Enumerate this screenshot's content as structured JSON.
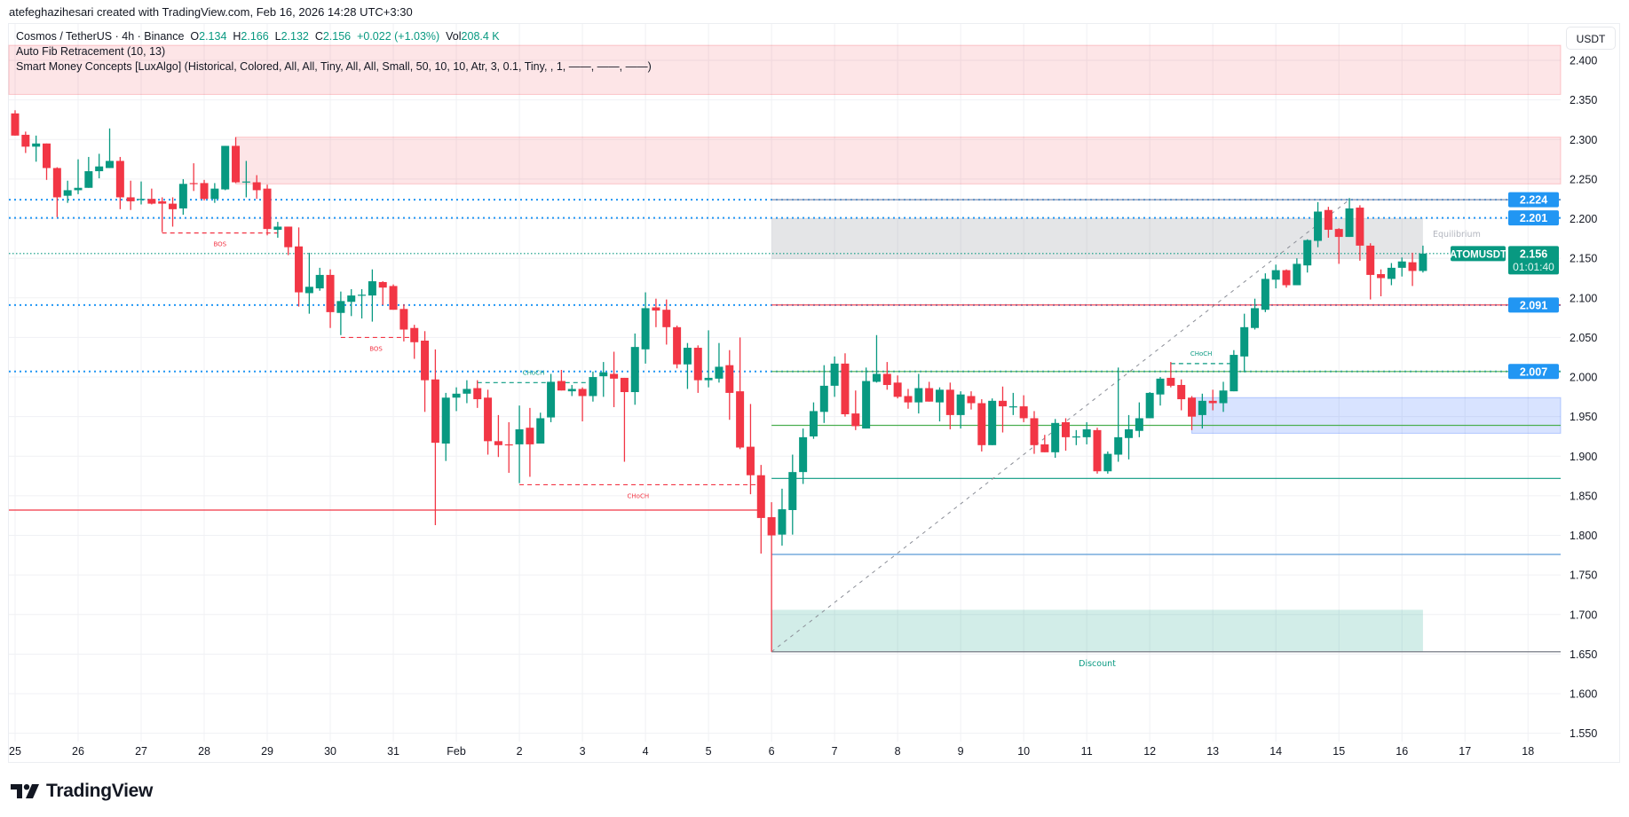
{
  "attribution": "atefeghazihesari created with TradingView.com, Feb 16, 2026 14:28 UTC+3:30",
  "legend": {
    "symbol": "Cosmos / TetherUS · 4h · Binance",
    "o_label": "O",
    "o": "2.134",
    "h_label": "H",
    "h": "2.166",
    "l_label": "L",
    "l": "2.132",
    "c_label": "C",
    "c": "2.156",
    "change": "+0.022 (+1.03%)",
    "vol_label": "Vol",
    "vol": "208.4 K",
    "indicator1": "Auto Fib Retracement (10, 13)",
    "indicator2": "Smart Money Concepts [LuxAlgo] (Historical, Colored, All, All, Tiny, All, All, Small, 50, 10, 10, Atr, 3, 0.1, Tiny, , 1, ——, ——, ——)"
  },
  "currency": "USDT",
  "logo_text": "TradingView",
  "colors": {
    "up": "#089981",
    "down": "#f23645",
    "blue": "#2196f3",
    "supply": "#f23645",
    "demand": "#089981",
    "ob": "#2962ff",
    "grid": "#f0f1f4"
  },
  "chart_data": {
    "type": "candlestick",
    "symbol": "ATOMUSDT",
    "interval": "4h",
    "ylim": [
      1.55,
      2.42
    ],
    "y_ticks": [
      "2.400",
      "2.350",
      "2.300",
      "2.250",
      "2.200",
      "2.150",
      "2.100",
      "2.050",
      "2.000",
      "1.950",
      "1.900",
      "1.850",
      "1.800",
      "1.750",
      "1.700",
      "1.650",
      "1.600",
      "1.550"
    ],
    "x_ticks": [
      "25",
      "26",
      "27",
      "28",
      "29",
      "30",
      "31",
      "Feb",
      "2",
      "3",
      "4",
      "5",
      "6",
      "7",
      "8",
      "9",
      "10",
      "11",
      "12",
      "13",
      "14",
      "15",
      "16",
      "17",
      "18"
    ],
    "bars_per_day": 6,
    "candles": [
      [
        2.333,
        2.337,
        2.305,
        2.305
      ],
      [
        2.306,
        2.31,
        2.283,
        2.291
      ],
      [
        2.291,
        2.305,
        2.272,
        2.295
      ],
      [
        2.295,
        2.295,
        2.249,
        2.264
      ],
      [
        2.264,
        2.265,
        2.202,
        2.227
      ],
      [
        2.229,
        2.248,
        2.22,
        2.236
      ],
      [
        2.236,
        2.275,
        2.231,
        2.239
      ],
      [
        2.239,
        2.278,
        2.239,
        2.26
      ],
      [
        2.26,
        2.282,
        2.251,
        2.266
      ],
      [
        2.264,
        2.314,
        2.264,
        2.273
      ],
      [
        2.273,
        2.278,
        2.212,
        2.227
      ],
      [
        2.227,
        2.248,
        2.211,
        2.222
      ],
      [
        2.224,
        2.247,
        2.218,
        2.225
      ],
      [
        2.225,
        2.238,
        2.218,
        2.219
      ],
      [
        2.222,
        2.227,
        2.183,
        2.219
      ],
      [
        2.219,
        2.227,
        2.19,
        2.212
      ],
      [
        2.213,
        2.25,
        2.205,
        2.244
      ],
      [
        2.245,
        2.27,
        2.235,
        2.244
      ],
      [
        2.245,
        2.249,
        2.223,
        2.225
      ],
      [
        2.225,
        2.245,
        2.22,
        2.238
      ],
      [
        2.237,
        2.292,
        2.236,
        2.292
      ],
      [
        2.292,
        2.303,
        2.245,
        2.246
      ],
      [
        2.246,
        2.273,
        2.227,
        2.247
      ],
      [
        2.246,
        2.255,
        2.225,
        2.236
      ],
      [
        2.238,
        2.243,
        2.179,
        2.187
      ],
      [
        2.186,
        2.196,
        2.176,
        2.19
      ],
      [
        2.19,
        2.19,
        2.154,
        2.164
      ],
      [
        2.165,
        2.189,
        2.089,
        2.107
      ],
      [
        2.106,
        2.157,
        2.08,
        2.114
      ],
      [
        2.112,
        2.138,
        2.109,
        2.129
      ],
      [
        2.129,
        2.136,
        2.062,
        2.082
      ],
      [
        2.081,
        2.108,
        2.053,
        2.096
      ],
      [
        2.095,
        2.111,
        2.077,
        2.103
      ],
      [
        2.103,
        2.111,
        2.074,
        2.104
      ],
      [
        2.103,
        2.136,
        2.07,
        2.121
      ],
      [
        2.12,
        2.121,
        2.091,
        2.113
      ],
      [
        2.115,
        2.117,
        2.085,
        2.085
      ],
      [
        2.086,
        2.092,
        2.045,
        2.06
      ],
      [
        2.062,
        2.066,
        2.023,
        2.044
      ],
      [
        2.046,
        2.058,
        1.956,
        1.996
      ],
      [
        1.997,
        2.035,
        1.813,
        1.917
      ],
      [
        1.916,
        1.98,
        1.894,
        1.974
      ],
      [
        1.974,
        1.987,
        1.957,
        1.979
      ],
      [
        1.979,
        1.996,
        1.967,
        1.985
      ],
      [
        1.986,
        1.996,
        1.961,
        1.972
      ],
      [
        1.974,
        1.984,
        1.902,
        1.919
      ],
      [
        1.919,
        1.952,
        1.899,
        1.914
      ],
      [
        1.915,
        1.943,
        1.879,
        1.914
      ],
      [
        1.915,
        1.964,
        1.866,
        1.934
      ],
      [
        1.936,
        1.961,
        1.874,
        1.915
      ],
      [
        1.916,
        1.955,
        1.916,
        1.948
      ],
      [
        1.949,
        2.004,
        1.943,
        1.994
      ],
      [
        1.995,
        2.009,
        1.983,
        1.983
      ],
      [
        1.982,
        1.99,
        1.976,
        1.985
      ],
      [
        1.985,
        1.987,
        1.944,
        1.976
      ],
      [
        1.976,
        2.007,
        1.969,
        2.0
      ],
      [
        2.001,
        2.019,
        1.975,
        2.006
      ],
      [
        2.004,
        2.032,
        1.962,
        1.998
      ],
      [
        1.999,
        1.999,
        1.893,
        1.981
      ],
      [
        1.981,
        2.055,
        1.965,
        2.038
      ],
      [
        2.035,
        2.107,
        2.017,
        2.087
      ],
      [
        2.088,
        2.099,
        2.063,
        2.084
      ],
      [
        2.085,
        2.098,
        2.041,
        2.063
      ],
      [
        2.063,
        2.065,
        2.011,
        2.016
      ],
      [
        2.016,
        2.043,
        1.985,
        2.037
      ],
      [
        2.037,
        2.04,
        1.98,
        1.996
      ],
      [
        1.996,
        2.059,
        1.987,
        1.999
      ],
      [
        1.998,
        2.043,
        1.993,
        2.013
      ],
      [
        2.015,
        2.034,
        1.946,
        1.98
      ],
      [
        1.982,
        2.05,
        1.909,
        1.911
      ],
      [
        1.912,
        1.966,
        1.852,
        1.876
      ],
      [
        1.876,
        1.889,
        1.777,
        1.822
      ],
      [
        1.823,
        1.842,
        1.653,
        1.8
      ],
      [
        1.801,
        1.859,
        1.787,
        1.833
      ],
      [
        1.832,
        1.902,
        1.801,
        1.88
      ],
      [
        1.88,
        1.935,
        1.865,
        1.924
      ],
      [
        1.925,
        1.968,
        1.922,
        1.957
      ],
      [
        1.956,
        2.015,
        1.942,
        1.989
      ],
      [
        1.989,
        2.026,
        1.975,
        2.017
      ],
      [
        2.017,
        2.03,
        1.95,
        1.953
      ],
      [
        1.954,
        1.983,
        1.933,
        1.938
      ],
      [
        1.935,
        2.012,
        1.935,
        1.995
      ],
      [
        1.994,
        2.053,
        1.993,
        2.004
      ],
      [
        2.004,
        2.019,
        1.984,
        1.99
      ],
      [
        1.993,
        2.002,
        1.973,
        1.975
      ],
      [
        1.976,
        1.985,
        1.96,
        1.968
      ],
      [
        1.968,
        2.004,
        1.954,
        1.986
      ],
      [
        1.986,
        1.994,
        1.969,
        1.969
      ],
      [
        1.968,
        1.987,
        1.944,
        1.984
      ],
      [
        1.984,
        1.993,
        1.934,
        1.952
      ],
      [
        1.952,
        1.982,
        1.935,
        1.978
      ],
      [
        1.976,
        1.982,
        1.959,
        1.967
      ],
      [
        1.967,
        1.972,
        1.906,
        1.914
      ],
      [
        1.914,
        1.973,
        1.914,
        1.97
      ],
      [
        1.97,
        1.988,
        1.93,
        1.963
      ],
      [
        1.962,
        1.98,
        1.952,
        1.963
      ],
      [
        1.963,
        1.977,
        1.943,
        1.948
      ],
      [
        1.948,
        1.957,
        1.903,
        1.914
      ],
      [
        1.915,
        1.927,
        1.905,
        1.905
      ],
      [
        1.905,
        1.947,
        1.898,
        1.942
      ],
      [
        1.943,
        1.948,
        1.907,
        1.924
      ],
      [
        1.924,
        1.933,
        1.914,
        1.925
      ],
      [
        1.924,
        1.943,
        1.915,
        1.934
      ],
      [
        1.933,
        1.936,
        1.878,
        1.881
      ],
      [
        1.881,
        1.906,
        1.878,
        1.903
      ],
      [
        1.902,
        2.012,
        1.893,
        1.924
      ],
      [
        1.923,
        1.952,
        1.896,
        1.934
      ],
      [
        1.932,
        1.968,
        1.924,
        1.948
      ],
      [
        1.948,
        1.981,
        1.948,
        1.98
      ],
      [
        1.978,
        2.0,
        1.964,
        1.998
      ],
      [
        1.999,
        2.019,
        1.987,
        1.989
      ],
      [
        1.99,
        1.997,
        1.958,
        1.972
      ],
      [
        1.974,
        1.976,
        1.933,
        1.95
      ],
      [
        1.952,
        1.979,
        1.935,
        1.97
      ],
      [
        1.97,
        1.984,
        1.958,
        1.967
      ],
      [
        1.967,
        1.994,
        1.956,
        1.983
      ],
      [
        1.982,
        2.034,
        1.982,
        2.028
      ],
      [
        2.026,
        2.08,
        2.006,
        2.063
      ],
      [
        2.062,
        2.099,
        2.06,
        2.087
      ],
      [
        2.085,
        2.131,
        2.082,
        2.124
      ],
      [
        2.123,
        2.142,
        2.112,
        2.135
      ],
      [
        2.135,
        2.136,
        2.113,
        2.116
      ],
      [
        2.116,
        2.15,
        2.116,
        2.143
      ],
      [
        2.141,
        2.174,
        2.132,
        2.173
      ],
      [
        2.172,
        2.221,
        2.164,
        2.209
      ],
      [
        2.211,
        2.215,
        2.176,
        2.186
      ],
      [
        2.187,
        2.188,
        2.143,
        2.177
      ],
      [
        2.177,
        2.226,
        2.177,
        2.213
      ],
      [
        2.214,
        2.217,
        2.147,
        2.166
      ],
      [
        2.166,
        2.169,
        2.098,
        2.129
      ],
      [
        2.13,
        2.136,
        2.102,
        2.125
      ],
      [
        2.124,
        2.144,
        2.116,
        2.138
      ],
      [
        2.138,
        2.151,
        2.127,
        2.146
      ],
      [
        2.145,
        2.157,
        2.115,
        2.134
      ],
      [
        2.134,
        2.166,
        2.132,
        2.156
      ]
    ],
    "zones": [
      {
        "name": "supply-zone-top",
        "from_bar": "left",
        "to_bar": "right",
        "top": 2.419,
        "bottom": 2.357,
        "kind": "supply"
      },
      {
        "name": "supply-zone",
        "from_bar": 21,
        "to_bar": "right",
        "top": 2.303,
        "bottom": 2.244,
        "kind": "supply"
      },
      {
        "name": "equilibrium-zone",
        "from_bar": 72,
        "to_bar": 134,
        "top": 2.201,
        "bottom": 2.149,
        "kind": "equilibrium"
      },
      {
        "name": "order-block",
        "from_bar": 112,
        "to_bar": "right",
        "top": 1.974,
        "bottom": 1.929,
        "kind": "ob"
      },
      {
        "name": "discount-zone",
        "from_bar": 72,
        "to_bar": 134,
        "top": 1.706,
        "bottom": 1.653,
        "kind": "demand"
      }
    ],
    "fib_levels": [
      {
        "price": 2.224,
        "label": "2.224"
      },
      {
        "price": 2.201,
        "label": "2.201"
      },
      {
        "price": 2.091,
        "label": "2.091"
      },
      {
        "price": 2.007,
        "label": "2.007"
      }
    ],
    "lines": [
      {
        "name": "premium-top-line",
        "from_bar": 72,
        "price": 2.224,
        "color": "#7f8fb0"
      },
      {
        "name": "fib-red-line",
        "from_bar": 72,
        "price": 2.091,
        "color": "#f23645"
      },
      {
        "name": "fib-green-line",
        "from_bar": 72,
        "price": 2.007,
        "color": "#4caf50"
      },
      {
        "name": "ob-mid-line",
        "from_bar": 72,
        "price": 1.939,
        "color": "#4caf50"
      },
      {
        "name": "support-line",
        "from_bar": 72,
        "price": 1.872,
        "color": "#089981"
      },
      {
        "name": "low-line-blue",
        "from_bar": 72,
        "price": 1.776,
        "color": "#5b9bd5"
      },
      {
        "name": "swing-low-line",
        "from_bar": 72,
        "price": 1.653,
        "color": "#787b86"
      },
      {
        "name": "red-level-line",
        "from_bar": "left",
        "to_bar": 71,
        "price": 1.832,
        "color": "#f23645"
      }
    ],
    "fib_diagonal": {
      "from_bar": 72,
      "from_price": 1.653,
      "to_bar": 127,
      "to_price": 2.224
    },
    "structure": [
      {
        "label": "BOS",
        "from_bar": 14,
        "to_bar": 25,
        "price": 2.182,
        "color": "#f23645"
      },
      {
        "label": "BOS",
        "from_bar": 31,
        "to_bar": 37.7,
        "price": 2.05,
        "color": "#f23645"
      },
      {
        "label": "CHoCH",
        "from_bar": 44,
        "to_bar": 54.7,
        "price": 1.993,
        "color": "#089981"
      },
      {
        "label": "CHoCH",
        "from_bar": 48,
        "to_bar": 70.6,
        "price": 1.864,
        "color": "#f23645"
      },
      {
        "label": "CHoCH",
        "from_bar": 110,
        "to_bar": 115.8,
        "price": 2.017,
        "color": "#089981"
      }
    ],
    "zone_labels": [
      {
        "text": "Equilibrium",
        "bar": 135,
        "price": 2.177,
        "color": "#b2b5be"
      },
      {
        "text": "Discount",
        "bar": 103,
        "price": 1.635,
        "color": "#089981"
      }
    ],
    "last_price": {
      "symbol": "ATOMUSDT",
      "price": 2.156,
      "price_label": "2.156",
      "countdown": "01:01:40"
    }
  }
}
